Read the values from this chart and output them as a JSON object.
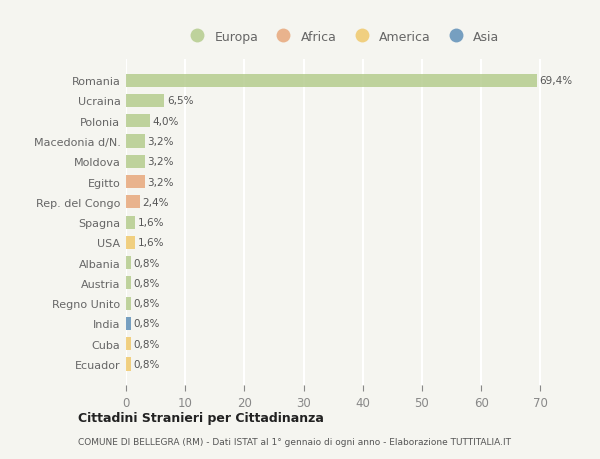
{
  "countries": [
    "Romania",
    "Ucraina",
    "Polonia",
    "Macedonia d/N.",
    "Moldova",
    "Egitto",
    "Rep. del Congo",
    "Spagna",
    "USA",
    "Albania",
    "Austria",
    "Regno Unito",
    "India",
    "Cuba",
    "Ecuador"
  ],
  "values": [
    69.4,
    6.5,
    4.0,
    3.2,
    3.2,
    3.2,
    2.4,
    1.6,
    1.6,
    0.8,
    0.8,
    0.8,
    0.8,
    0.8,
    0.8
  ],
  "labels": [
    "69,4%",
    "6,5%",
    "4,0%",
    "3,2%",
    "3,2%",
    "3,2%",
    "2,4%",
    "1,6%",
    "1,6%",
    "0,8%",
    "0,8%",
    "0,8%",
    "0,8%",
    "0,8%",
    "0,8%"
  ],
  "colors": [
    "#b5cc8e",
    "#b5cc8e",
    "#b5cc8e",
    "#b5cc8e",
    "#b5cc8e",
    "#e8a87c",
    "#e8a87c",
    "#b5cc8e",
    "#f0c96c",
    "#b5cc8e",
    "#b5cc8e",
    "#b5cc8e",
    "#6090b8",
    "#f0c96c",
    "#f0c96c"
  ],
  "legend_labels": [
    "Europa",
    "Africa",
    "America",
    "Asia"
  ],
  "legend_colors": [
    "#b5cc8e",
    "#e8a87c",
    "#f0c96c",
    "#6090b8"
  ],
  "title1": "Cittadini Stranieri per Cittadinanza",
  "title2": "COMUNE DI BELLEGRA (RM) - Dati ISTAT al 1° gennaio di ogni anno - Elaborazione TUTTITALIA.IT",
  "xlim": [
    0,
    73
  ],
  "xticks": [
    0,
    10,
    20,
    30,
    40,
    50,
    60,
    70
  ],
  "background_color": "#f5f5f0",
  "grid_color": "#ffffff",
  "bar_height": 0.65
}
